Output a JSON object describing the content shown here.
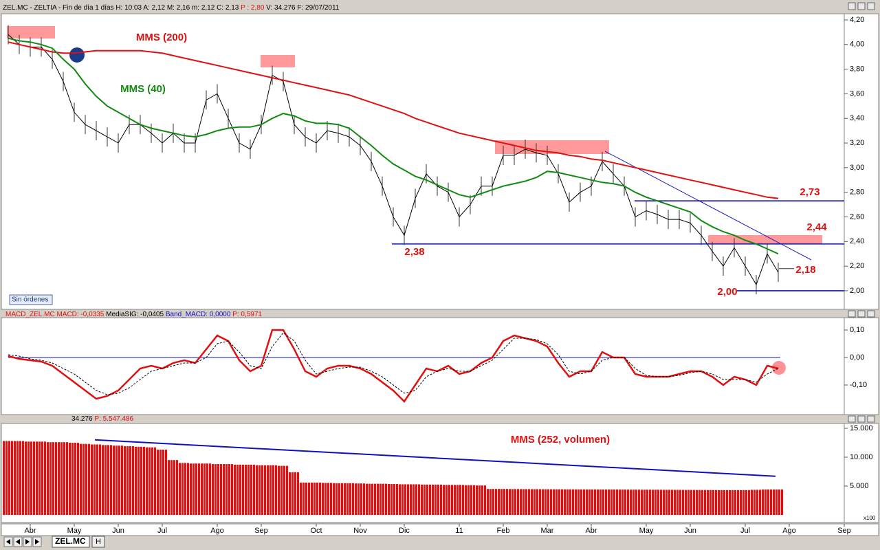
{
  "header": {
    "title": "ZEL.MC - ZELTIA - Fin de día 1 días  H: 10:03  A: 2,12  M: 2,16  m: 2,12  C: 2,13  ",
    "price": "P : 2,80",
    "tail": "  V: 34.276  F: 29/07/2011"
  },
  "toolbar": {
    "status": "Sin órdenes",
    "tab": "ZEL.MC",
    "tab2": "H",
    "units": "x100"
  },
  "chart_data": [
    {
      "type": "line",
      "categories": [
        null,
        null,
        "Abr",
        null,
        null,
        null,
        "May",
        null,
        null,
        null,
        "Jun",
        null,
        null,
        null,
        "Jul",
        null,
        null,
        null,
        null,
        "Ago",
        null,
        null,
        null,
        "Sep",
        null,
        null,
        null,
        null,
        "Oct",
        null,
        null,
        null,
        "Nov",
        null,
        null,
        null,
        "Dic",
        null,
        null,
        null,
        null,
        "11",
        null,
        null,
        null,
        "Feb",
        null,
        null,
        null,
        "Mar",
        null,
        null,
        null,
        "Abr",
        null,
        null,
        null,
        null,
        "May",
        null,
        null,
        null,
        "Jun",
        null,
        null,
        null,
        null,
        "Jul",
        null,
        null,
        null,
        "Ago",
        null,
        null,
        null,
        null,
        "Sep"
      ],
      "values": [
        4.08,
        4.0,
        3.98,
        3.98,
        3.88,
        3.7,
        3.45,
        3.35,
        3.3,
        3.25,
        3.2,
        3.35,
        3.35,
        3.28,
        3.2,
        3.28,
        3.2,
        3.2,
        3.55,
        3.6,
        3.4,
        3.2,
        3.15,
        3.35,
        3.75,
        3.7,
        3.35,
        3.25,
        3.2,
        3.3,
        3.28,
        3.25,
        3.18,
        3.05,
        2.85,
        2.6,
        2.45,
        2.75,
        2.95,
        2.85,
        2.8,
        2.6,
        2.7,
        2.85,
        2.85,
        3.1,
        3.1,
        3.15,
        3.12,
        3.1,
        2.95,
        2.72,
        2.8,
        2.85,
        3.05,
        2.95,
        2.85,
        2.6,
        2.65,
        2.62,
        2.58,
        2.58,
        2.55,
        2.45,
        2.32,
        2.2,
        2.35,
        2.2,
        2.05,
        2.3,
        2.15,
        null,
        null,
        null,
        null,
        null,
        null
      ],
      "color": "#000000",
      "series": [
        {
          "name": "MMS (200)",
          "color": "#e01010",
          "values": [
            4.02,
            4.0,
            3.98,
            3.96,
            3.94,
            3.93,
            3.93,
            3.94,
            3.95,
            3.95,
            3.95,
            3.95,
            3.95,
            3.94,
            3.93,
            3.91,
            3.89,
            3.87,
            3.85,
            3.83,
            3.81,
            3.79,
            3.77,
            3.75,
            3.73,
            3.71,
            3.69,
            3.67,
            3.65,
            3.63,
            3.61,
            3.59,
            3.56,
            3.53,
            3.5,
            3.47,
            3.44,
            3.4,
            3.37,
            3.34,
            3.31,
            3.28,
            3.26,
            3.24,
            3.22,
            3.2,
            3.18,
            3.16,
            3.14,
            3.13,
            3.12,
            3.1,
            3.09,
            3.07,
            3.06,
            3.04,
            3.02,
            3.0,
            2.98,
            2.96,
            2.94,
            2.92,
            2.9,
            2.88,
            2.86,
            2.84,
            2.82,
            2.8,
            2.78,
            2.76,
            2.75,
            null,
            null,
            null,
            null,
            null,
            null
          ]
        },
        {
          "name": "MMS (40)",
          "color": "#128a12",
          "values": [
            4.05,
            4.03,
            4.02,
            4.0,
            3.97,
            3.88,
            3.8,
            3.68,
            3.58,
            3.5,
            3.45,
            3.4,
            3.35,
            3.32,
            3.3,
            3.28,
            3.26,
            3.25,
            3.27,
            3.3,
            3.32,
            3.33,
            3.33,
            3.35,
            3.4,
            3.44,
            3.42,
            3.38,
            3.36,
            3.36,
            3.35,
            3.32,
            3.25,
            3.18,
            3.1,
            3.03,
            2.98,
            2.93,
            2.9,
            2.86,
            2.82,
            2.78,
            2.76,
            2.79,
            2.82,
            2.85,
            2.87,
            2.89,
            2.92,
            2.97,
            2.96,
            2.94,
            2.92,
            2.9,
            2.88,
            2.87,
            2.85,
            2.8,
            2.76,
            2.73,
            2.7,
            2.67,
            2.64,
            2.57,
            2.52,
            2.48,
            2.45,
            2.41,
            2.38,
            2.34,
            2.3,
            null,
            null,
            null,
            null,
            null,
            null
          ]
        }
      ],
      "levels": [
        {
          "value": 2.73,
          "label": "2,73"
        },
        {
          "value": 2.44,
          "label": "2,44"
        },
        {
          "value": 2.38,
          "label": "2,38"
        },
        {
          "value": 2.18,
          "label": "2,18"
        },
        {
          "value": 2.0,
          "label": "2,00"
        }
      ],
      "ylim": [
        1.86,
        4.25
      ],
      "yticks": [
        {
          "value": 4.2,
          "label": "4,20"
        },
        {
          "value": 4.0,
          "label": "4,00"
        },
        {
          "value": 3.8,
          "label": "3,80"
        },
        {
          "value": 3.6,
          "label": "3,60"
        },
        {
          "value": 3.4,
          "label": "3,40"
        },
        {
          "value": 3.2,
          "label": "3,20"
        },
        {
          "value": 3.0,
          "label": "3,00"
        },
        {
          "value": 2.8,
          "label": "2,80"
        },
        {
          "value": 2.6,
          "label": "2,60"
        },
        {
          "value": 2.4,
          "label": "2,40"
        },
        {
          "value": 2.2,
          "label": "2,20"
        },
        {
          "value": 2.0,
          "label": "2,00"
        }
      ]
    },
    {
      "type": "line",
      "title": "MACD_ZEL.MC  ",
      "title_macd": "MACD: -0,0335  ",
      "title_sig": "MediaSIG: -0,0405  ",
      "title_band": "Band_MACD: 0,0000  ",
      "title_p": "P: 0,5971",
      "series": [
        {
          "name": "MACD",
          "color": "#e01010",
          "values": [
            0.005,
            -0.005,
            -0.01,
            -0.015,
            -0.03,
            -0.06,
            -0.09,
            -0.12,
            -0.15,
            -0.14,
            -0.12,
            -0.08,
            -0.04,
            -0.03,
            -0.04,
            -0.02,
            -0.01,
            -0.02,
            0.03,
            0.08,
            0.06,
            -0.01,
            -0.05,
            -0.03,
            0.1,
            0.1,
            0.03,
            -0.05,
            -0.07,
            -0.04,
            -0.03,
            -0.03,
            -0.04,
            -0.06,
            -0.09,
            -0.12,
            -0.16,
            -0.1,
            -0.04,
            -0.05,
            -0.03,
            -0.06,
            -0.05,
            -0.02,
            0.0,
            0.06,
            0.08,
            0.07,
            0.06,
            0.04,
            -0.02,
            -0.07,
            -0.05,
            -0.05,
            0.02,
            0.0,
            0.0,
            -0.06,
            -0.07,
            -0.07,
            -0.07,
            -0.06,
            -0.05,
            -0.05,
            -0.07,
            -0.1,
            -0.07,
            -0.08,
            -0.1,
            -0.03,
            -0.04,
            null,
            null,
            null,
            null,
            null,
            null
          ]
        },
        {
          "name": "MediaSIG",
          "color": "#000000",
          "values": [
            0.01,
            0.005,
            -0.005,
            -0.01,
            -0.02,
            -0.04,
            -0.06,
            -0.09,
            -0.12,
            -0.135,
            -0.13,
            -0.11,
            -0.08,
            -0.05,
            -0.04,
            -0.03,
            -0.02,
            -0.02,
            0.0,
            0.05,
            0.06,
            0.02,
            -0.03,
            -0.04,
            0.04,
            0.09,
            0.06,
            -0.01,
            -0.06,
            -0.05,
            -0.04,
            -0.035,
            -0.035,
            -0.05,
            -0.07,
            -0.1,
            -0.13,
            -0.12,
            -0.07,
            -0.05,
            -0.04,
            -0.05,
            -0.05,
            -0.03,
            -0.01,
            0.03,
            0.07,
            0.07,
            0.065,
            0.05,
            0.01,
            -0.05,
            -0.06,
            -0.05,
            -0.01,
            0.0,
            0.0,
            -0.04,
            -0.065,
            -0.07,
            -0.07,
            -0.065,
            -0.055,
            -0.05,
            -0.06,
            -0.08,
            -0.08,
            -0.08,
            -0.09,
            -0.06,
            -0.04,
            null,
            null,
            null,
            null,
            null,
            null
          ]
        }
      ],
      "band": 0,
      "ylim": [
        -0.205,
        0.145
      ],
      "yticks": [
        {
          "value": 0.1,
          "label": "0,10"
        },
        {
          "value": 0,
          "label": "0,00"
        },
        {
          "value": -0.1,
          "label": "-0,10"
        }
      ]
    },
    {
      "type": "bar",
      "title": "34.276  ",
      "title_p": "P: 5.547.486",
      "series": [
        {
          "name": "MMS (252, volumen)",
          "color": "#e01010",
          "values": [
            12800,
            12800,
            12700,
            12700,
            12600,
            12600,
            12500,
            12300,
            12200,
            12100,
            12000,
            11900,
            11800,
            11700,
            11300,
            9500,
            9000,
            8900,
            8900,
            8800,
            8800,
            8700,
            8700,
            8600,
            8600,
            8500,
            7400,
            5600,
            5600,
            5550,
            5500,
            5500,
            5450,
            5400,
            5400,
            5350,
            5300,
            5300,
            5250,
            5250,
            5200,
            5200,
            5150,
            5100,
            4500,
            4500,
            4480,
            4470,
            4460,
            4450,
            4440,
            4430,
            4420,
            4410,
            4400,
            4400,
            4390,
            4380,
            4370,
            4360,
            4350,
            4340,
            4330,
            4320,
            4310,
            4300,
            4300,
            4300,
            4350,
            4400,
            4400,
            null,
            null,
            null,
            null,
            null,
            null
          ]
        }
      ],
      "trend": [
        13000,
        6700
      ],
      "ylim": [
        -360,
        15830
      ],
      "yticks": [
        {
          "value": 15000,
          "label": "15.000"
        },
        {
          "value": 10000,
          "label": "10.000"
        },
        {
          "value": 5000,
          "label": "5.000"
        }
      ]
    }
  ]
}
